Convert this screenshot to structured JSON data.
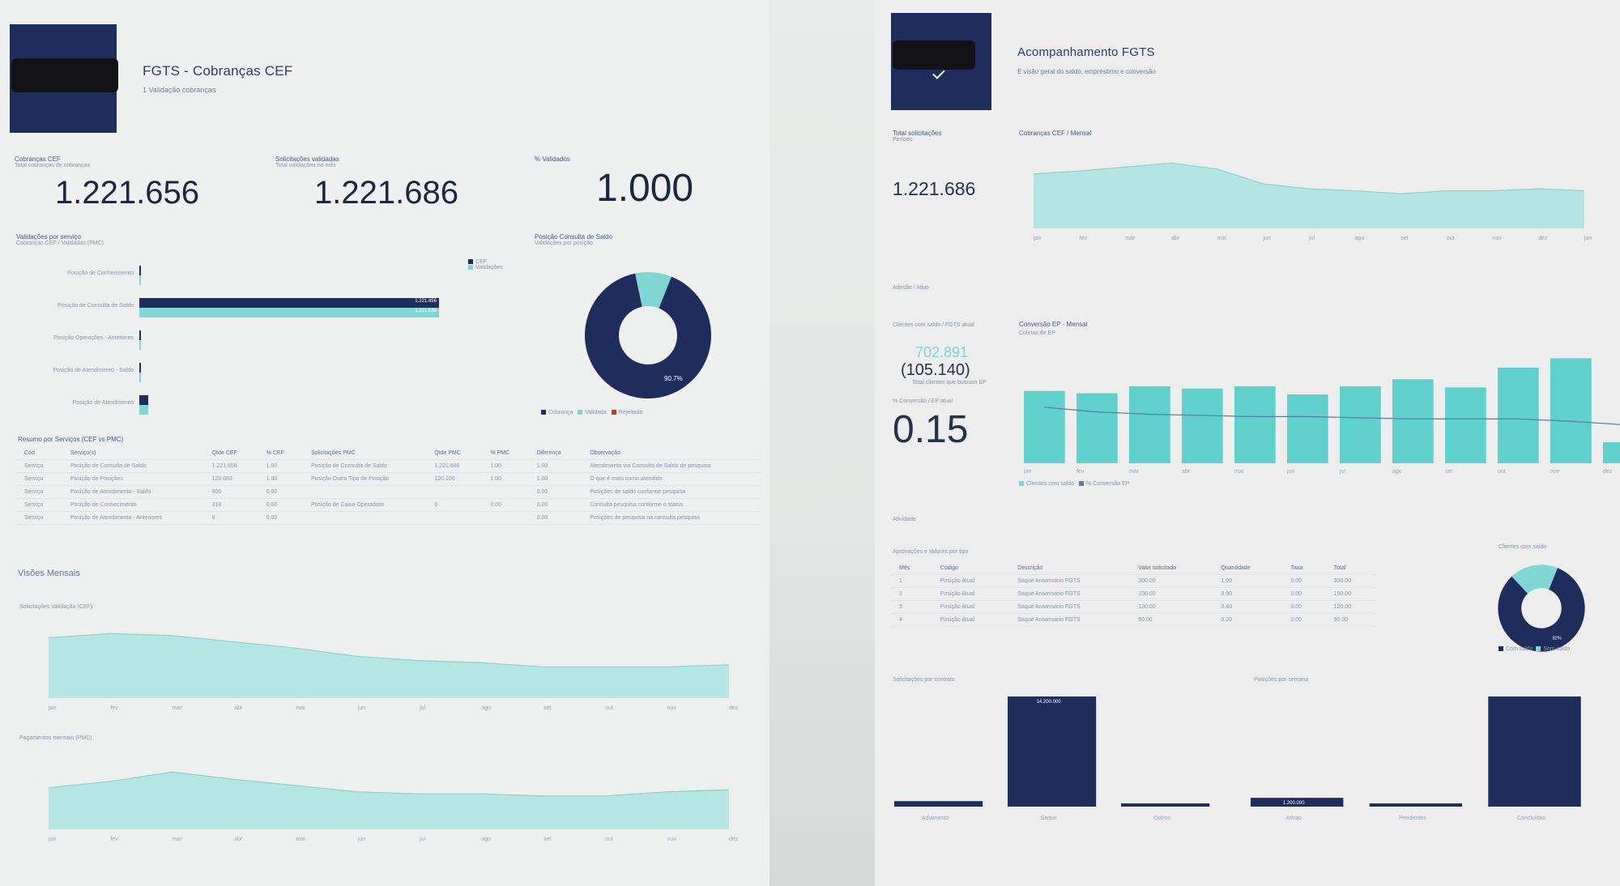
{
  "left": {
    "header": {
      "title": "FGTS - Cobranças CEF",
      "subtitle": "1 Validação cobranças"
    },
    "kpis": [
      {
        "label": "Cobranças CEF",
        "sub": "Total cobranças de cobranças",
        "value": "1.221.656"
      },
      {
        "label": "Solicitações validadas",
        "sub": "Total validações no mês",
        "value": "1.221.686"
      },
      {
        "label": "% Validados",
        "sub": "",
        "value": "1.000"
      }
    ],
    "services_chart": {
      "title": "Validações por serviço",
      "subtitle": "Cobranças CEF / Validadas (PMC)",
      "rows": [
        {
          "label": "Posição de Conhecimento",
          "navy": 0,
          "teal": 0
        },
        {
          "label": "Posição de Consulta de Saldo",
          "navy": 1221656,
          "teal": 1221686,
          "navy_label": "1.221.656",
          "teal_label": "1.221.686"
        },
        {
          "label": "Posição Operações - Anteriores",
          "navy": 0,
          "teal": 0
        },
        {
          "label": "Posição de Atendimento - Saldo",
          "navy": 0,
          "teal": 0
        },
        {
          "label": "Posição de Atendimento",
          "navy": 35000,
          "teal": 35000,
          "navy_label": "",
          "teal_label": ""
        }
      ],
      "legend": [
        "CEF",
        "Validações"
      ]
    },
    "donut": {
      "title": "Posição Consulta de Saldo",
      "subtitle": "Validações por posição",
      "slices": [
        {
          "name": "Cobrança",
          "value": 90.7,
          "color": "#1f2d5c"
        },
        {
          "name": "Validadas",
          "value": 9.3,
          "color": "#7fd6d3"
        }
      ],
      "center_label": "90.7%",
      "legend": [
        "Cobrança",
        "Validada",
        "Rejeitada"
      ]
    },
    "table": {
      "title": "Resumo por Serviços (CEF vs PMC)",
      "columns": [
        "Cód",
        "Serviço(s)",
        "Qtde CEF",
        "% CEF",
        "Solicitações PMC",
        "Qtde PMC",
        "% PMC",
        "Diferença",
        "Observação"
      ],
      "rows": [
        [
          "Serviço",
          "Posição de Consulta de Saldo",
          "1.221.656",
          "1.00",
          "Posição de Consulta de Saldo",
          "1.221.686",
          "1.00",
          "1.00",
          "Atendimento via Consulta de Saldo de pesquisa"
        ],
        [
          "Serviço",
          "Posição de Posições",
          "120.083",
          "1.00",
          "Posição Outro Tipo de Posição",
          "120.100",
          "1.00",
          "1.00",
          "O que é mais como atendido"
        ],
        [
          "Serviço",
          "Posição de Atendimento - Saldo",
          "900",
          "0.00",
          "",
          "",
          "",
          "0.00",
          "Posições de saldo conforme pesquisa"
        ],
        [
          "Serviço",
          "Posição de Conhecimento",
          "318",
          "0.00",
          "Posição de Caixa Operadora",
          "0",
          "0.00",
          "0.00",
          "Consulta pesquisa conforme o status"
        ],
        [
          "Serviço",
          "Posição de Atendimento - Anteriores",
          "0",
          "0.00",
          "",
          "",
          "",
          "0.00",
          "Posições de pesquisa na consulta pesquisa"
        ]
      ]
    },
    "monthly_section": "Visões Mensais",
    "area1": {
      "title": "Solicitações Validação (CEF)",
      "values": [
        58,
        62,
        60,
        54,
        48,
        40,
        36,
        34,
        30,
        30,
        30,
        32
      ],
      "x": [
        "jan",
        "fev",
        "mar",
        "abr",
        "mai",
        "jun",
        "jul",
        "ago",
        "set",
        "out",
        "nov",
        "dez"
      ]
    },
    "area2": {
      "title": "Pagamentos mensais (PMC)",
      "values": [
        40,
        46,
        55,
        48,
        42,
        36,
        34,
        34,
        32,
        32,
        36,
        38
      ],
      "x": [
        "jan",
        "fev",
        "mar",
        "abr",
        "mai",
        "jun",
        "jul",
        "ago",
        "set",
        "out",
        "nov",
        "dez"
      ]
    }
  },
  "right": {
    "header": {
      "title": "Acompanhamento FGTS",
      "subtitle": "E visão geral do saldo, empréstimo e conversão"
    },
    "kpi_total": {
      "label": "Total solicitações",
      "sub": "Período",
      "value": "1.221.686"
    },
    "area_chart": {
      "title": "Cobranças CEF / Mensal",
      "values": [
        55,
        58,
        62,
        66,
        60,
        45,
        40,
        38,
        35,
        38,
        38,
        40,
        38
      ],
      "x": [
        "jan",
        "fev",
        "mar",
        "abr",
        "mai",
        "jun",
        "jul",
        "ago",
        "set",
        "out",
        "nov",
        "dez",
        "jan"
      ]
    },
    "filter_label": "Adesão / Ativo",
    "metrics": {
      "label": "Clientes com saldo / FGTS atual",
      "value_teal": "702.891",
      "value_neg": "(105.140)",
      "sub": "Total clientes que buscam EP",
      "ratio_label": "% Conversão / EP atual",
      "ratio_value": "0.15"
    },
    "bar_chart": {
      "title": "Conversão EP - Mensal",
      "subtitle": "Coletas de EP",
      "values": [
        62,
        60,
        66,
        64,
        66,
        59,
        66,
        72,
        65,
        82,
        90,
        18
      ],
      "line": [
        48,
        44,
        42,
        41,
        40,
        40,
        39,
        38,
        38,
        38,
        36,
        33
      ],
      "x": [
        "jan",
        "fev",
        "mar",
        "abr",
        "mai",
        "jun",
        "jul",
        "ago",
        "set",
        "out",
        "nov",
        "dez"
      ],
      "legend": [
        "Clientes com saldo",
        "% Conversão EP"
      ]
    },
    "filter2": "Atividade",
    "table2": {
      "title": "Aprovações e Valores por tipo",
      "columns": [
        "Mês",
        "Código",
        "Descrição",
        "Valor solicitado",
        "Quantidade",
        "Taxa",
        "Total"
      ],
      "rows": [
        [
          "1",
          "Posição Atual",
          "Saque Aniversário FGTS",
          "300.00",
          "1.00",
          "0.00",
          "300.00"
        ],
        [
          "2",
          "Posição Atual",
          "Saque Aniversário FGTS",
          "150.00",
          "0.90",
          "0.00",
          "150.00"
        ],
        [
          "3",
          "Posição Atual",
          "Saque Aniversário FGTS",
          "120.00",
          "0.40",
          "0.00",
          "120.00"
        ],
        [
          "4",
          "Posição Atual",
          "Saque Aniversário FGTS",
          "90.00",
          "0.20",
          "0.00",
          "90.00"
        ]
      ]
    },
    "donut2": {
      "title": "Clientes com saldo",
      "slices": [
        {
          "name": "Com saldo",
          "value": 82,
          "color": "#1f2d5c"
        },
        {
          "name": "Sem saldo",
          "value": 18,
          "color": "#7fd6d3"
        }
      ],
      "center_label": "82%",
      "legend": [
        "Com saldo",
        "Sem saldo"
      ]
    },
    "bottom_left": {
      "title": "Solicitações por contrato",
      "bars": [
        {
          "label": "Adiamento",
          "value": 5
        },
        {
          "label": "Saque",
          "value": 100,
          "value_label": "14.200.000"
        },
        {
          "label": "Outros",
          "value": 1
        }
      ]
    },
    "bottom_right": {
      "title": "Posições por semana",
      "bars": [
        {
          "label": "Ativas",
          "value": 8,
          "value_label": "1.200.000"
        },
        {
          "label": "Pendentes",
          "value": 1
        },
        {
          "label": "Concluídas",
          "value": 100
        }
      ]
    }
  }
}
